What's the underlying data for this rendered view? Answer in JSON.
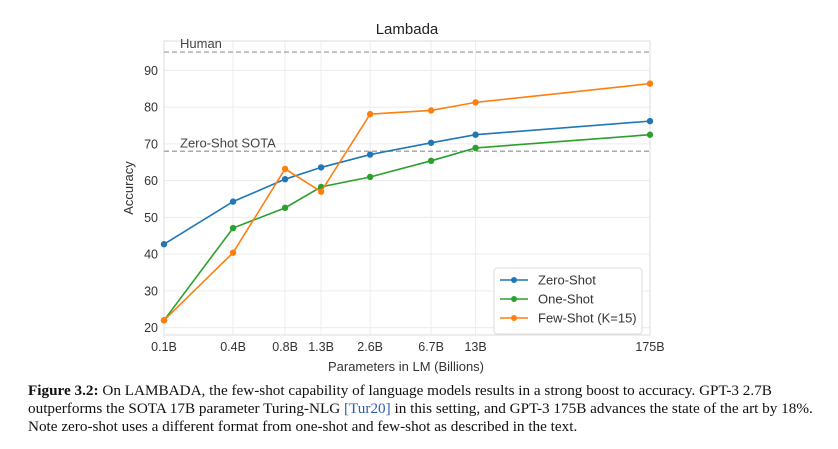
{
  "chart_data": {
    "type": "line",
    "title": "Lambada",
    "xlabel": "Parameters in LM (Billions)",
    "ylabel": "Accuracy",
    "x_scale": "log",
    "categories": [
      "0.1B",
      "0.4B",
      "0.8B",
      "1.3B",
      "2.6B",
      "6.7B",
      "13B",
      "175B"
    ],
    "x": [
      0.125,
      0.35,
      0.76,
      1.3,
      2.7,
      6.7,
      13,
      175
    ],
    "ylim": [
      18,
      98
    ],
    "yticks": [
      20,
      30,
      40,
      50,
      60,
      70,
      80,
      90
    ],
    "grid": true,
    "legend_position": "bottom-right",
    "series": [
      {
        "name": "Zero-Shot",
        "color": "#1f77b4",
        "values": [
          42.7,
          54.3,
          60.4,
          63.6,
          67.1,
          70.3,
          72.5,
          76.2
        ]
      },
      {
        "name": "One-Shot",
        "color": "#2ca02c",
        "values": [
          22.0,
          47.1,
          52.6,
          58.3,
          61.0,
          65.4,
          68.9,
          72.5
        ]
      },
      {
        "name": "Few-Shot (K=15)",
        "color": "#ff7f0e",
        "values": [
          22.0,
          40.4,
          63.2,
          57.0,
          78.1,
          79.1,
          81.3,
          86.4
        ]
      }
    ],
    "reference_lines": [
      {
        "label": "Human",
        "value": 95
      },
      {
        "label": "Zero-Shot SOTA",
        "value": 68
      }
    ]
  },
  "caption": {
    "label": "Figure 3.2:",
    "text_before_cite": " On LAMBADA, the few-shot capability of language models results in a strong boost to accuracy. GPT-3 2.7B outperforms the SOTA 17B parameter Turing-NLG ",
    "cite": "[Tur20]",
    "text_after_cite": " in this setting, and GPT-3 175B advances the state of the art by 18%. Note zero-shot uses a different format from one-shot and few-shot as described in the text."
  }
}
